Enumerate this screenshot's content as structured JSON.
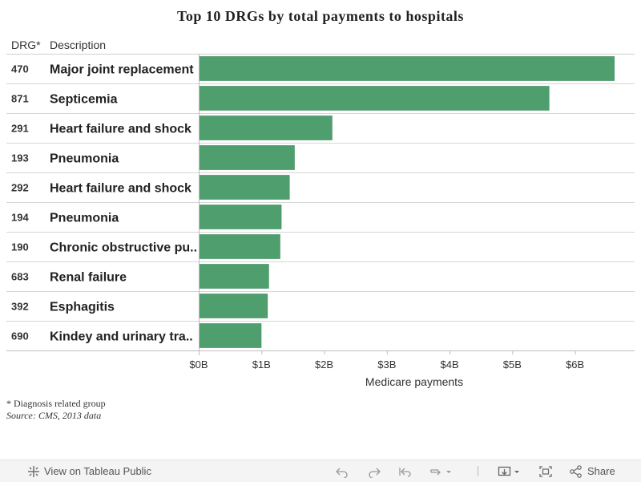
{
  "chart_data": {
    "type": "bar",
    "orientation": "horizontal",
    "title": "Top 10 DRGs by total payments to hospitals",
    "columns": {
      "code": "DRG*",
      "description": "Description"
    },
    "rows": [
      {
        "code": "470",
        "description": "Major joint replacement",
        "value": 6.62
      },
      {
        "code": "871",
        "description": "Septicemia",
        "value": 5.58
      },
      {
        "code": "291",
        "description": "Heart failure and shock",
        "value": 2.12
      },
      {
        "code": "193",
        "description": "Pneumonia",
        "value": 1.52
      },
      {
        "code": "292",
        "description": "Heart failure and shock",
        "value": 1.44
      },
      {
        "code": "194",
        "description": "Pneumonia",
        "value": 1.31
      },
      {
        "code": "190",
        "description": "Chronic obstructive pu..",
        "value": 1.29
      },
      {
        "code": "683",
        "description": "Renal failure",
        "value": 1.11
      },
      {
        "code": "392",
        "description": "Esphagitis",
        "value": 1.09
      },
      {
        "code": "690",
        "description": "Kindey and urinary tra..",
        "value": 0.99
      }
    ],
    "xlabel": "Medicare payments",
    "ticks": [
      "$0B",
      "$1B",
      "$2B",
      "$3B",
      "$4B",
      "$5B",
      "$6B"
    ],
    "tick_values": [
      0,
      1,
      2,
      3,
      4,
      5,
      6
    ],
    "xlim": [
      0,
      6.95
    ],
    "units": "billions USD",
    "bar_color": "#4e9f6d",
    "grid": false
  },
  "footnotes": {
    "note": "* Diagnosis related group",
    "source": "Source:  CMS, 2013  data"
  },
  "toolbar": {
    "view_label": "View on Tableau Public",
    "share_label": "Share",
    "icons": [
      "tableau-logo-icon",
      "undo-icon",
      "redo-icon",
      "revert-icon",
      "refresh-icon",
      "download-icon",
      "fullscreen-icon",
      "share-icon"
    ]
  }
}
